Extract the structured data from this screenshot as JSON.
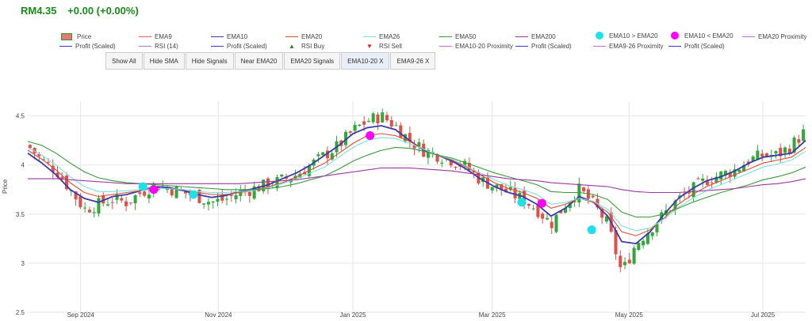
{
  "header": {
    "price": "RM4.35",
    "change": "+0.00 (+0.00%)"
  },
  "legend": [
    {
      "label": "Price",
      "color": "#2a9a2a",
      "kind": "box"
    },
    {
      "label": "EMA9",
      "color": "#e36161",
      "kind": "line"
    },
    {
      "label": "EMA10",
      "color": "#3a3aa8",
      "kind": "line"
    },
    {
      "label": "EMA20",
      "color": "#e04b2f",
      "kind": "line"
    },
    {
      "label": "EMA26",
      "color": "#7ce0e0",
      "kind": "line"
    },
    {
      "label": "EMA50",
      "color": "#3a9a3a",
      "kind": "line"
    },
    {
      "label": "EMA200",
      "color": "#9a3aa0",
      "kind": "line"
    },
    {
      "label": "EMA10 > EMA20",
      "color": "#1ee0e8",
      "kind": "dot"
    },
    {
      "label": "EMA10 < EMA20",
      "color": "#ff00ff",
      "kind": "dot"
    },
    {
      "label": "EMA20 Proximity",
      "color": "#c070c8",
      "kind": "line"
    },
    {
      "label": "Profit (Scaled)",
      "color": "#3a3ad8",
      "kind": "line"
    },
    {
      "label": "RSI (14)",
      "color": "#b080b8",
      "kind": "line"
    },
    {
      "label": "Profit (Scaled)",
      "color": "#3a3ad8",
      "kind": "line"
    },
    {
      "label": "RSI Buy",
      "color": "#1a8a1a",
      "kind": "up"
    },
    {
      "label": "RSI Sell",
      "color": "#e02020",
      "kind": "down"
    },
    {
      "label": "EMA10-20 Proximity",
      "color": "#c070c8",
      "kind": "line"
    },
    {
      "label": "Profit (Scaled)",
      "color": "#3a3ad8",
      "kind": "line"
    },
    {
      "label": "EMA9-26 Proximity",
      "color": "#c070c8",
      "kind": "line"
    },
    {
      "label": "Profit (Scaled)",
      "color": "#3a3ad8",
      "kind": "line"
    }
  ],
  "buttons": [
    "Show All",
    "Hide SMA",
    "Hide Signals",
    "Near EMA20",
    "EMA20 Signals",
    "EMA10-20 X",
    "EMA9-26 X"
  ],
  "chart_data": {
    "type": "candlestick",
    "ylabel": "Price",
    "ylim": [
      2.5,
      4.65
    ],
    "yticks": [
      "2.5",
      "3",
      "3.5",
      "4",
      "4.5"
    ],
    "xticks": [
      "Sep 2024",
      "Nov 2024",
      "Jan 2025",
      "Mar 2025",
      "May 2025",
      "Jul 2025"
    ],
    "xtick_positions": [
      0.068,
      0.245,
      0.418,
      0.597,
      0.773,
      0.945
    ],
    "series": [
      {
        "name": "Price (close)",
        "color": "#2a9a2a",
        "values": [
          4.2,
          4.05,
          3.95,
          3.75,
          3.55,
          3.6,
          3.65,
          3.62,
          3.72,
          3.8,
          3.76,
          3.72,
          3.68,
          3.62,
          3.65,
          3.72,
          3.76,
          3.8,
          3.85,
          3.9,
          4.0,
          4.1,
          4.2,
          4.35,
          4.45,
          4.5,
          4.4,
          4.25,
          4.15,
          4.1,
          4.05,
          3.98,
          3.85,
          3.78,
          3.72,
          3.65,
          3.55,
          3.4,
          3.6,
          3.75,
          3.6,
          3.4,
          2.9,
          3.2,
          3.35,
          3.5,
          3.65,
          3.75,
          3.85,
          3.9,
          3.95,
          4.05,
          4.1,
          4.1,
          4.2,
          4.35
        ]
      },
      {
        "name": "EMA10",
        "color": "#3a3aa8",
        "values": [
          4.12,
          4.02,
          3.9,
          3.75,
          3.66,
          3.62,
          3.68,
          3.7,
          3.74,
          3.78,
          3.77,
          3.74,
          3.7,
          3.67,
          3.69,
          3.73,
          3.76,
          3.8,
          3.86,
          3.92,
          4.0,
          4.1,
          4.2,
          4.32,
          4.38,
          4.4,
          4.36,
          4.25,
          4.15,
          4.1,
          4.04,
          3.96,
          3.86,
          3.78,
          3.72,
          3.68,
          3.6,
          3.48,
          3.56,
          3.68,
          3.62,
          3.48,
          3.22,
          3.2,
          3.32,
          3.5,
          3.66,
          3.76,
          3.84,
          3.88,
          3.94,
          4.02,
          4.08,
          4.1,
          4.12,
          4.25
        ]
      },
      {
        "name": "EMA20",
        "color": "#e04b2f",
        "values": [
          4.15,
          4.06,
          3.95,
          3.82,
          3.72,
          3.68,
          3.7,
          3.72,
          3.74,
          3.76,
          3.76,
          3.75,
          3.72,
          3.7,
          3.7,
          3.72,
          3.74,
          3.78,
          3.82,
          3.88,
          3.95,
          4.02,
          4.12,
          4.22,
          4.3,
          4.32,
          4.3,
          4.24,
          4.16,
          4.1,
          4.05,
          3.98,
          3.9,
          3.82,
          3.76,
          3.72,
          3.66,
          3.56,
          3.6,
          3.66,
          3.62,
          3.52,
          3.32,
          3.28,
          3.34,
          3.46,
          3.6,
          3.7,
          3.78,
          3.84,
          3.9,
          3.96,
          4.02,
          4.05,
          4.08,
          4.18
        ]
      },
      {
        "name": "EMA26",
        "color": "#7ce0e0",
        "values": [
          4.18,
          4.1,
          4.0,
          3.88,
          3.78,
          3.73,
          3.73,
          3.74,
          3.75,
          3.76,
          3.76,
          3.75,
          3.73,
          3.72,
          3.72,
          3.73,
          3.74,
          3.77,
          3.81,
          3.86,
          3.92,
          3.98,
          4.08,
          4.18,
          4.25,
          4.28,
          4.27,
          4.22,
          4.16,
          4.1,
          4.06,
          3.99,
          3.92,
          3.85,
          3.79,
          3.75,
          3.7,
          3.6,
          3.62,
          3.66,
          3.63,
          3.55,
          3.38,
          3.33,
          3.36,
          3.45,
          3.57,
          3.66,
          3.74,
          3.8,
          3.86,
          3.92,
          3.98,
          4.01,
          4.05,
          4.14
        ]
      },
      {
        "name": "EMA50",
        "color": "#3a9a3a",
        "values": [
          4.24,
          4.2,
          4.12,
          4.02,
          3.93,
          3.87,
          3.84,
          3.82,
          3.81,
          3.8,
          3.79,
          3.78,
          3.77,
          3.76,
          3.75,
          3.75,
          3.75,
          3.76,
          3.78,
          3.81,
          3.85,
          3.89,
          3.96,
          4.04,
          4.1,
          4.15,
          4.18,
          4.17,
          4.14,
          4.1,
          4.07,
          4.02,
          3.97,
          3.92,
          3.88,
          3.84,
          3.8,
          3.73,
          3.72,
          3.72,
          3.7,
          3.65,
          3.52,
          3.47,
          3.47,
          3.5,
          3.56,
          3.62,
          3.67,
          3.72,
          3.76,
          3.8,
          3.85,
          3.88,
          3.92,
          3.98
        ]
      },
      {
        "name": "EMA200",
        "color": "#9a3aa0",
        "values": [
          3.86,
          3.86,
          3.86,
          3.85,
          3.84,
          3.83,
          3.82,
          3.81,
          3.81,
          3.81,
          3.81,
          3.81,
          3.81,
          3.81,
          3.81,
          3.81,
          3.82,
          3.83,
          3.84,
          3.85,
          3.87,
          3.89,
          3.91,
          3.93,
          3.95,
          3.97,
          3.97,
          3.97,
          3.96,
          3.95,
          3.94,
          3.92,
          3.9,
          3.88,
          3.86,
          3.85,
          3.84,
          3.82,
          3.81,
          3.8,
          3.79,
          3.78,
          3.75,
          3.73,
          3.72,
          3.72,
          3.72,
          3.73,
          3.74,
          3.75,
          3.76,
          3.78,
          3.8,
          3.81,
          3.83,
          3.86
        ]
      }
    ],
    "crossovers": [
      {
        "type": "EMA10 > EMA20",
        "x": 0.148,
        "y": 3.78
      },
      {
        "type": "EMA10 < EMA20",
        "x": 0.162,
        "y": 3.75
      },
      {
        "type": "EMA10 > EMA20",
        "x": 0.213,
        "y": 3.7
      },
      {
        "type": "EMA10 < EMA20",
        "x": 0.44,
        "y": 4.3
      },
      {
        "type": "EMA10 > EMA20",
        "x": 0.635,
        "y": 3.62
      },
      {
        "type": "EMA10 < EMA20",
        "x": 0.661,
        "y": 3.61
      },
      {
        "type": "EMA10 > EMA20",
        "x": 0.725,
        "y": 3.34
      }
    ]
  }
}
